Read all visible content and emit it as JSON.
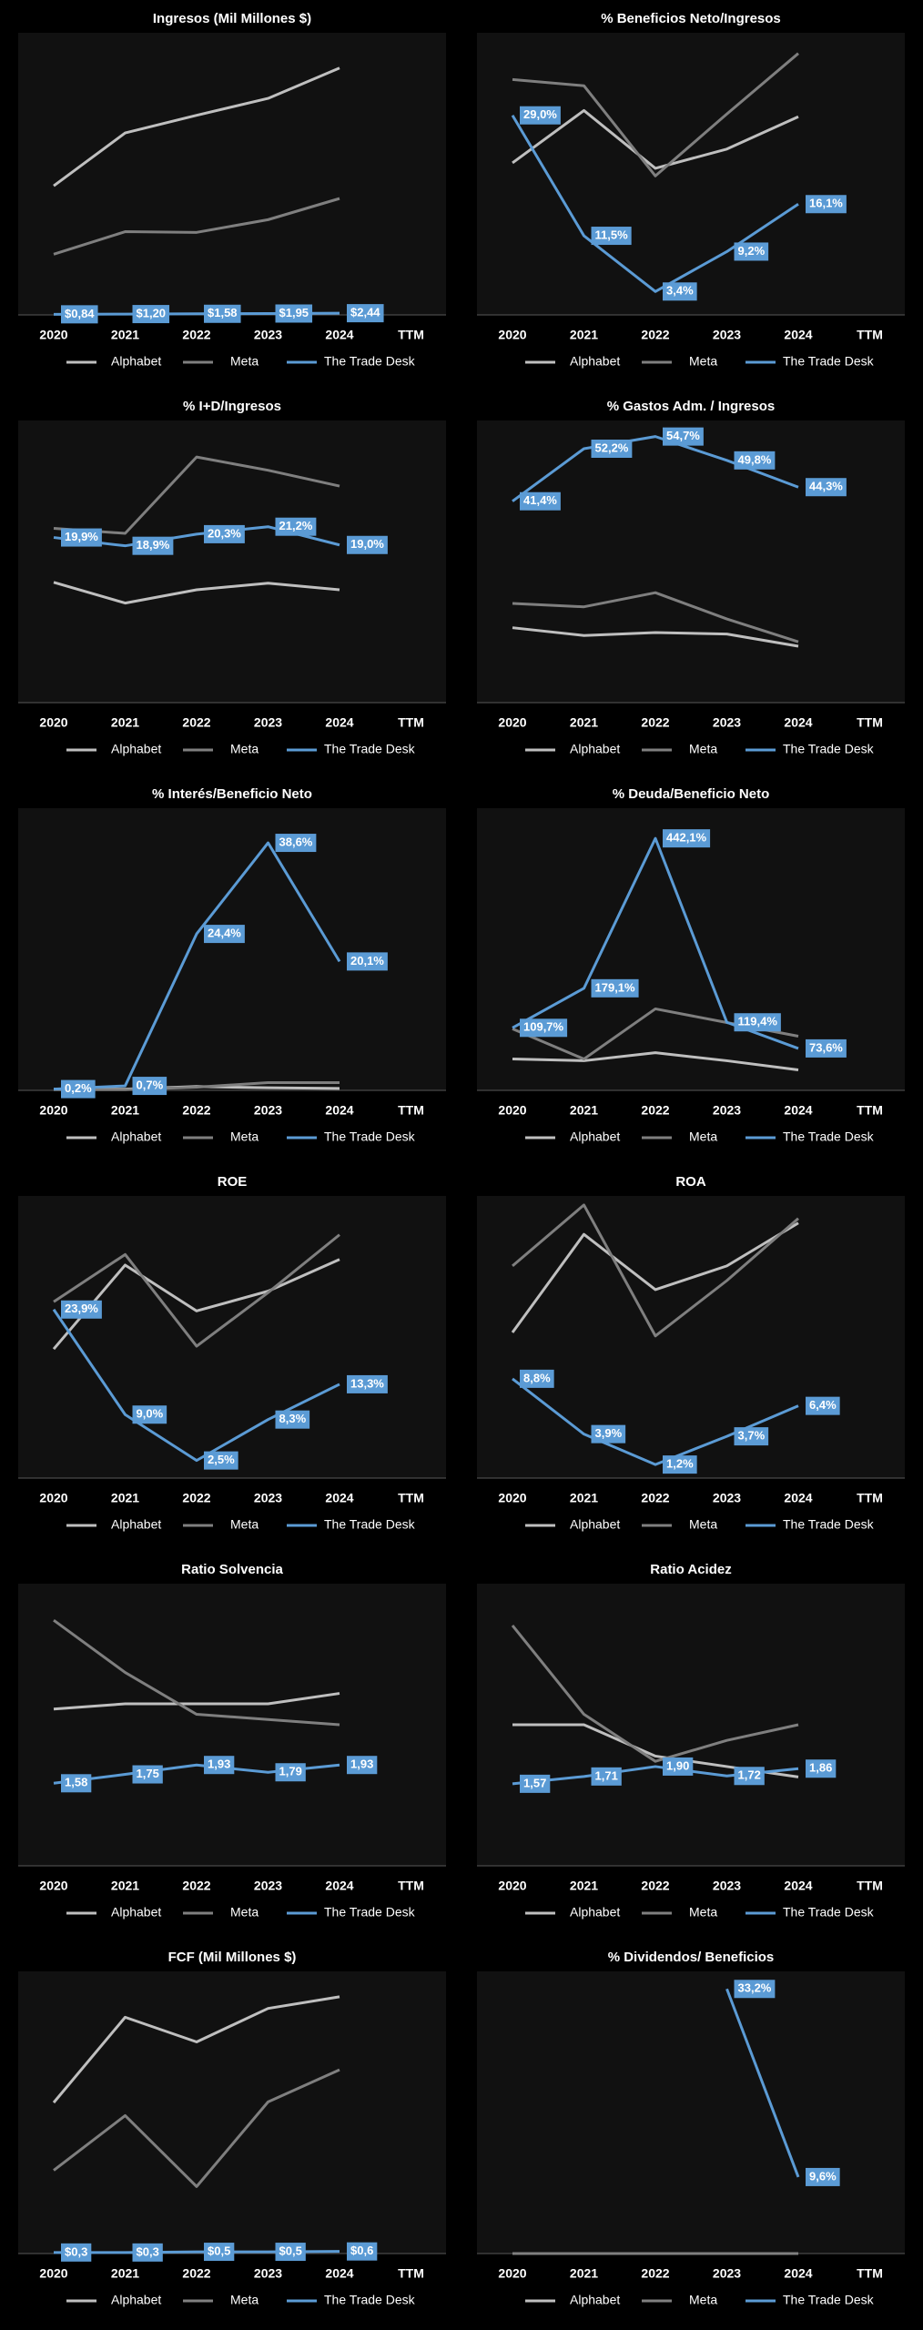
{
  "chart_data": [
    {
      "type": "line",
      "title": "Ingresos (Mil Millones $)",
      "categories": [
        "2020",
        "2021",
        "2022",
        "2023",
        "2024",
        "TTM"
      ],
      "ylim": [
        0,
        400
      ],
      "series": [
        {
          "name": "Alphabet",
          "color": "#bfbfbf",
          "values": [
            183,
            258,
            283,
            307,
            350,
            null
          ]
        },
        {
          "name": "Meta",
          "color": "#7f7f7f",
          "values": [
            86,
            118,
            117,
            135,
            165,
            null
          ]
        },
        {
          "name": "The Trade Desk",
          "color": "#5b9bd5",
          "values": [
            0.84,
            1.2,
            1.58,
            1.95,
            2.44,
            null
          ],
          "value_labels": [
            "$0,84",
            "$1,20",
            "$1,58",
            "$1,95",
            "$2,44",
            null
          ]
        }
      ]
    },
    {
      "type": "line",
      "title": "% Beneficios Neto/Ingresos",
      "categories": [
        "2020",
        "2021",
        "2022",
        "2023",
        "2024",
        "TTM"
      ],
      "ylim": [
        0,
        41
      ],
      "series": [
        {
          "name": "Alphabet",
          "color": "#bfbfbf",
          "values": [
            22.1,
            29.7,
            21.3,
            24.1,
            28.8,
            null
          ]
        },
        {
          "name": "Meta",
          "color": "#7f7f7f",
          "values": [
            34.2,
            33.3,
            20.2,
            29.2,
            38.0,
            null
          ]
        },
        {
          "name": "The Trade Desk",
          "color": "#5b9bd5",
          "values": [
            29.0,
            11.5,
            3.4,
            9.2,
            16.1,
            null
          ],
          "value_labels": [
            "29,0%",
            "11,5%",
            "3,4%",
            "9,2%",
            "16,1%",
            null
          ]
        }
      ]
    },
    {
      "type": "line",
      "title": "% I+D/Ingresos",
      "categories": [
        "2020",
        "2021",
        "2022",
        "2023",
        "2024",
        "TTM"
      ],
      "ylim": [
        0,
        34
      ],
      "series": [
        {
          "name": "Alphabet",
          "color": "#bfbfbf",
          "values": [
            14.5,
            12.0,
            13.6,
            14.4,
            13.6,
            null
          ]
        },
        {
          "name": "Meta",
          "color": "#7f7f7f",
          "values": [
            21.0,
            20.4,
            29.6,
            28.0,
            26.1,
            null
          ]
        },
        {
          "name": "The Trade Desk",
          "color": "#5b9bd5",
          "values": [
            19.9,
            18.9,
            20.3,
            21.2,
            19.0,
            null
          ],
          "value_labels": [
            "19,9%",
            "18,9%",
            "20,3%",
            "21,2%",
            "19,0%",
            null
          ]
        }
      ]
    },
    {
      "type": "line",
      "title": "% Gastos Adm. / Ingresos",
      "categories": [
        "2020",
        "2021",
        "2022",
        "2023",
        "2024",
        "TTM"
      ],
      "ylim": [
        0,
        58
      ],
      "series": [
        {
          "name": "Alphabet",
          "color": "#bfbfbf",
          "values": [
            15.4,
            13.8,
            14.4,
            14.1,
            11.6,
            null
          ]
        },
        {
          "name": "Meta",
          "color": "#7f7f7f",
          "values": [
            20.4,
            19.7,
            22.6,
            17.2,
            12.5,
            null
          ]
        },
        {
          "name": "The Trade Desk",
          "color": "#5b9bd5",
          "values": [
            41.4,
            52.2,
            54.7,
            49.8,
            44.3,
            null
          ],
          "value_labels": [
            "41,4%",
            "52,2%",
            "54,7%",
            "49,8%",
            "44,3%",
            null
          ]
        }
      ]
    },
    {
      "type": "line",
      "title": "% Interés/Beneficio  Neto",
      "categories": [
        "2020",
        "2021",
        "2022",
        "2023",
        "2024",
        "TTM"
      ],
      "ylim": [
        0,
        44
      ],
      "series": [
        {
          "name": "Alphabet",
          "color": "#bfbfbf",
          "values": [
            0.2,
            0.2,
            0.6,
            0.4,
            0.3,
            null
          ]
        },
        {
          "name": "Meta",
          "color": "#7f7f7f",
          "values": [
            0.1,
            0.1,
            0.5,
            1.2,
            1.2,
            null
          ]
        },
        {
          "name": "The Trade Desk",
          "color": "#5b9bd5",
          "values": [
            0.2,
            0.7,
            24.4,
            38.6,
            20.1,
            null
          ],
          "value_labels": [
            "0,2%",
            "0,7%",
            "24,4%",
            "38,6%",
            "20,1%",
            null
          ]
        }
      ]
    },
    {
      "type": "line",
      "title": "% Deuda/Beneficio  Neto",
      "categories": [
        "2020",
        "2021",
        "2022",
        "2023",
        "2024",
        "TTM"
      ],
      "ylim": [
        0,
        495
      ],
      "series": [
        {
          "name": "Alphabet",
          "color": "#bfbfbf",
          "values": [
            55,
            52,
            66,
            52,
            36,
            null
          ]
        },
        {
          "name": "Meta",
          "color": "#7f7f7f",
          "values": [
            108,
            55,
            143,
            119,
            95,
            null
          ]
        },
        {
          "name": "The Trade Desk",
          "color": "#5b9bd5",
          "values": [
            109.7,
            179.1,
            442.1,
            119.4,
            73.6,
            null
          ],
          "value_labels": [
            "109,7%",
            "179,1%",
            "442,1%",
            "119,4%",
            "73,6%",
            null
          ]
        }
      ]
    },
    {
      "type": "line",
      "title": "ROE",
      "categories": [
        "2020",
        "2021",
        "2022",
        "2023",
        "2024",
        "TTM"
      ],
      "ylim": [
        0,
        40
      ],
      "series": [
        {
          "name": "Alphabet",
          "color": "#bfbfbf",
          "values": [
            18.3,
            30.2,
            23.7,
            26.5,
            31.0,
            null
          ]
        },
        {
          "name": "Meta",
          "color": "#7f7f7f",
          "values": [
            25.0,
            31.7,
            18.7,
            26.3,
            34.5,
            null
          ]
        },
        {
          "name": "The Trade Desk",
          "color": "#5b9bd5",
          "values": [
            23.9,
            9.0,
            2.5,
            8.3,
            13.3,
            null
          ],
          "value_labels": [
            "23,9%",
            "9,0%",
            "2,5%",
            "8,3%",
            "13,3%",
            null
          ]
        }
      ]
    },
    {
      "type": "line",
      "title": "ROA",
      "categories": [
        "2020",
        "2021",
        "2022",
        "2023",
        "2024",
        "TTM"
      ],
      "ylim": [
        0,
        25
      ],
      "series": [
        {
          "name": "Alphabet",
          "color": "#bfbfbf",
          "values": [
            12.9,
            21.6,
            16.7,
            18.8,
            22.6,
            null
          ]
        },
        {
          "name": "Meta",
          "color": "#7f7f7f",
          "values": [
            18.8,
            24.2,
            12.6,
            17.5,
            23.0,
            null
          ]
        },
        {
          "name": "The Trade Desk",
          "color": "#5b9bd5",
          "values": [
            8.8,
            3.9,
            1.2,
            3.7,
            6.4,
            null
          ],
          "value_labels": [
            "8,8%",
            "3,9%",
            "1,2%",
            "3,7%",
            "6,4%",
            null
          ]
        }
      ]
    },
    {
      "type": "line",
      "title": "Ratio Solvencia",
      "categories": [
        "2020",
        "2021",
        "2022",
        "2023",
        "2024",
        "TTM"
      ],
      "ylim": [
        0,
        5.4
      ],
      "series": [
        {
          "name": "Alphabet",
          "color": "#bfbfbf",
          "values": [
            3.0,
            3.1,
            3.1,
            3.1,
            3.3,
            null
          ]
        },
        {
          "name": "Meta",
          "color": "#7f7f7f",
          "values": [
            4.7,
            3.7,
            2.9,
            2.8,
            2.7,
            null
          ]
        },
        {
          "name": "The Trade Desk",
          "color": "#5b9bd5",
          "values": [
            1.58,
            1.75,
            1.93,
            1.79,
            1.93,
            null
          ],
          "value_labels": [
            "1,58",
            "1,75",
            "1,93",
            "1,79",
            "1,93",
            null
          ]
        }
      ]
    },
    {
      "type": "line",
      "title": "Ratio Acidez",
      "categories": [
        "2020",
        "2021",
        "2022",
        "2023",
        "2024",
        "TTM"
      ],
      "ylim": [
        0,
        5.4
      ],
      "series": [
        {
          "name": "Alphabet",
          "color": "#bfbfbf",
          "values": [
            2.7,
            2.7,
            2.1,
            1.9,
            1.7,
            null
          ]
        },
        {
          "name": "Meta",
          "color": "#7f7f7f",
          "values": [
            4.6,
            2.9,
            2.0,
            2.4,
            2.7,
            null
          ]
        },
        {
          "name": "The Trade Desk",
          "color": "#5b9bd5",
          "values": [
            1.57,
            1.71,
            1.9,
            1.72,
            1.86,
            null
          ],
          "value_labels": [
            "1,57",
            "1,71",
            "1,90",
            "1,72",
            "1,86",
            null
          ]
        }
      ]
    },
    {
      "type": "line",
      "title": "FCF (Mil Millones $)",
      "categories": [
        "2020",
        "2021",
        "2022",
        "2023",
        "2024",
        "TTM"
      ],
      "ylim": [
        0,
        80
      ],
      "series": [
        {
          "name": "Alphabet",
          "color": "#bfbfbf",
          "values": [
            42.8,
            67.0,
            60.0,
            69.5,
            72.8,
            null
          ]
        },
        {
          "name": "Meta",
          "color": "#7f7f7f",
          "values": [
            23.6,
            39.1,
            19.0,
            43.0,
            52.1,
            null
          ]
        },
        {
          "name": "The Trade Desk",
          "color": "#5b9bd5",
          "values": [
            0.3,
            0.3,
            0.5,
            0.5,
            0.6,
            null
          ],
          "value_labels": [
            "$0,3",
            "$0,3",
            "$0,5",
            "$0,5",
            "$0,6",
            null
          ]
        }
      ]
    },
    {
      "type": "line",
      "title": "% Dividendos/  Beneficios",
      "categories": [
        "2020",
        "2021",
        "2022",
        "2023",
        "2024",
        "TTM"
      ],
      "ylim": [
        0,
        35.4
      ],
      "series": [
        {
          "name": "Alphabet",
          "color": "#bfbfbf",
          "values": [
            0,
            0,
            0,
            0,
            0,
            null
          ]
        },
        {
          "name": "Meta",
          "color": "#7f7f7f",
          "values": [
            0,
            0,
            0,
            0,
            0,
            null
          ]
        },
        {
          "name": "The Trade Desk",
          "color": "#5b9bd5",
          "values": [
            null,
            null,
            null,
            33.2,
            9.6,
            null
          ],
          "value_labels": [
            null,
            null,
            null,
            "33,2%",
            "9,6%",
            null
          ]
        }
      ]
    }
  ]
}
